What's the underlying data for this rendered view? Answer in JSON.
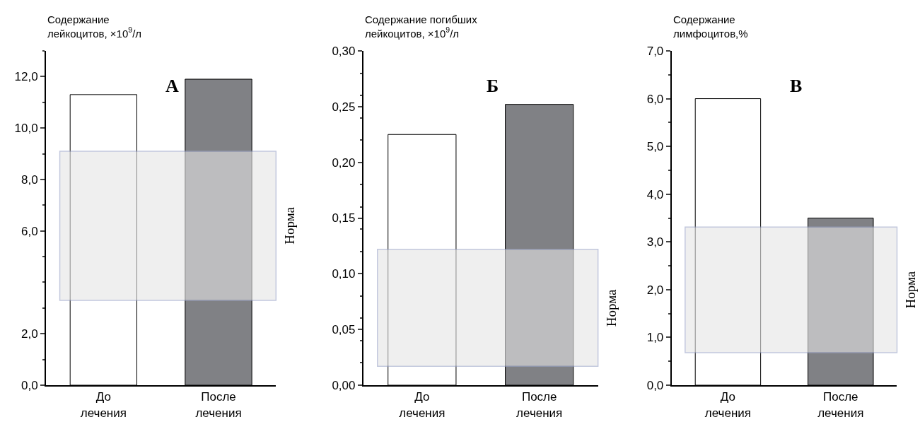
{
  "chart_data": [
    {
      "type": "bar",
      "title": "А",
      "ylabel": "Содержание\nлейкоцитов, ×10$^{9}$/л",
      "categories": [
        "До лечения",
        "После лечения"
      ],
      "values": [
        11.3,
        11.9
      ],
      "colors": [
        "#ffffff",
        "#808185"
      ],
      "ylim": [
        0,
        13
      ],
      "yticks": [
        {
          "value": 0,
          "label": "0,0"
        },
        {
          "value": 2,
          "label": "2,0"
        },
        {
          "value": 6,
          "label": "6,0"
        },
        {
          "value": 8,
          "label": "8,0"
        },
        {
          "value": 10,
          "label": "10,0"
        },
        {
          "value": 12,
          "label": "12,0"
        }
      ],
      "bands": [
        {
          "axis": "y",
          "from": 3.3,
          "to": 9.1,
          "label": "Норма",
          "color": "#e6e6e6"
        }
      ]
    },
    {
      "type": "bar",
      "title": "Б",
      "ylabel": "Содержание погибших\nлейкоцитов, ×10$^{9}$/л",
      "categories": [
        "До лечения",
        "После лечения"
      ],
      "values": [
        0.225,
        0.252
      ],
      "colors": [
        "#ffffff",
        "#808185"
      ],
      "ylim": [
        0,
        0.3
      ],
      "yticks": [
        {
          "value": 0,
          "label": "0,00"
        },
        {
          "value": 0.05,
          "label": "0,05"
        },
        {
          "value": 0.1,
          "label": "0,10"
        },
        {
          "value": 0.15,
          "label": "0,15"
        },
        {
          "value": 0.2,
          "label": "0,20"
        },
        {
          "value": 0.25,
          "label": "0,25"
        },
        {
          "value": 0.3,
          "label": "0,30"
        }
      ],
      "bands": [
        {
          "axis": "y",
          "from": 0.017,
          "to": 0.122,
          "label": "Норма",
          "color": "#e6e6e6"
        }
      ]
    },
    {
      "type": "bar",
      "title": "В",
      "ylabel": "Содержание\nлимфоцитов,%",
      "categories": [
        "До лечения",
        "После лечения"
      ],
      "values": [
        6.0,
        3.5
      ],
      "colors": [
        "#ffffff",
        "#808185"
      ],
      "ylim": [
        0,
        7
      ],
      "yticks": [
        {
          "value": 0,
          "label": "0,0"
        },
        {
          "value": 1,
          "label": "1,0"
        },
        {
          "value": 2,
          "label": "2,0"
        },
        {
          "value": 3,
          "label": "3,0"
        },
        {
          "value": 4,
          "label": "4,0"
        },
        {
          "value": 5,
          "label": "5,0"
        },
        {
          "value": 6,
          "label": "6,0"
        },
        {
          "value": 7,
          "label": "7,0"
        }
      ],
      "bands": [
        {
          "axis": "y",
          "from": 0.68,
          "to": 3.31,
          "label": "Норма",
          "color": "#e6e6e6"
        }
      ]
    }
  ]
}
